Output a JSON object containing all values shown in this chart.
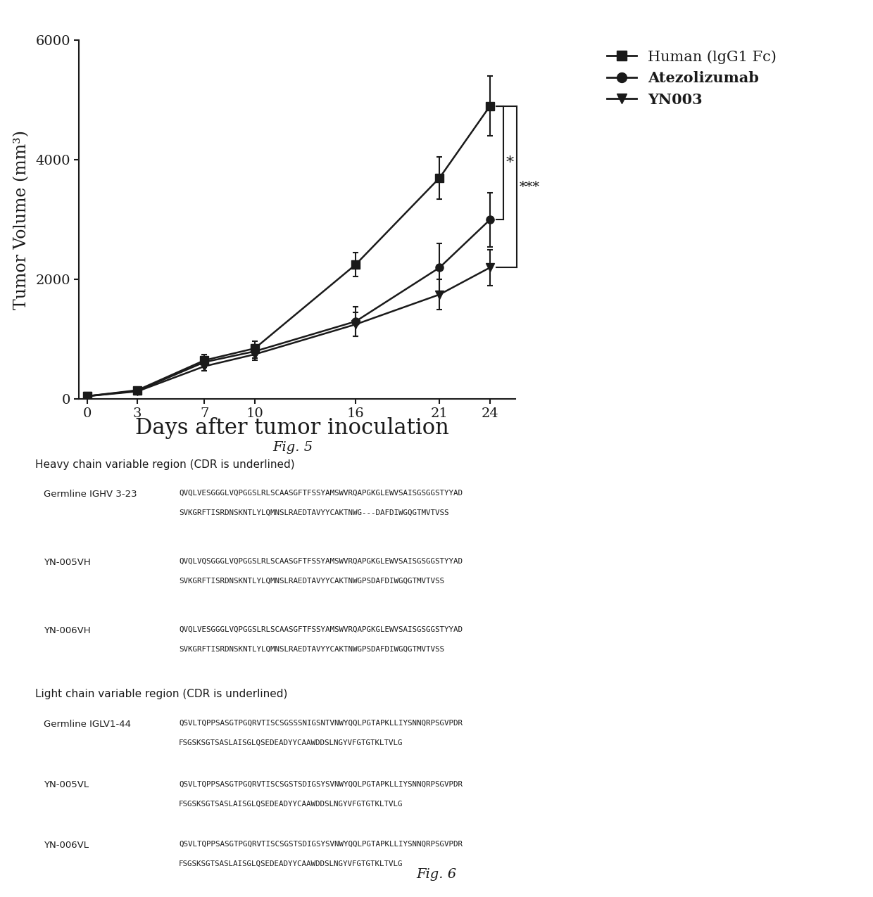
{
  "days": [
    0,
    3,
    7,
    10,
    16,
    21,
    24
  ],
  "human_mean": [
    50,
    150,
    650,
    850,
    2250,
    3700,
    4900
  ],
  "human_err": [
    20,
    60,
    100,
    120,
    200,
    350,
    500
  ],
  "atezolizumab_mean": [
    50,
    140,
    620,
    800,
    1300,
    2200,
    3000
  ],
  "atezolizumab_err": [
    20,
    55,
    90,
    110,
    250,
    400,
    450
  ],
  "yn003_mean": [
    50,
    130,
    550,
    750,
    1250,
    1750,
    2200
  ],
  "yn003_err": [
    20,
    50,
    80,
    100,
    200,
    250,
    300
  ],
  "ylabel": "Tumor Volume (mm³)",
  "xlabel": "Days after tumor inoculation",
  "ylim": [
    0,
    6000
  ],
  "yticks": [
    0,
    2000,
    4000,
    6000
  ],
  "xticks": [
    0,
    3,
    7,
    10,
    16,
    21,
    24
  ],
  "legend_labels": [
    "Human (lgG1 Fc)",
    "Atezolizumab",
    "YN003"
  ],
  "fig5_label": "Fig. 5",
  "annotation_star1": "*",
  "annotation_star2": "***",
  "color": "#1a1a1a",
  "background": "#ffffff",
  "heavy_chain_header": "Heavy chain variable region (CDR is underlined)",
  "light_chain_header": "Light chain variable region (CDR is underlined)",
  "fig6_label": "Fig. 6",
  "heavy_entries": [
    {
      "label": "Germline IGHV 3-23",
      "line1": "QVQLVESGGGLVQPGGSLRLSCAASGFTFSSYAMSWVRQAPGKGLEWVSAISGSGGSTYYAD",
      "line2": "SVKGRFTISRDNSKNTLYLQMNSLRAEDTAVYYCAKTNWG---DAFDIWGQGTMVTVSS"
    },
    {
      "label": "YN-005VH",
      "line1": "QVQLVQSGGGLVQPGGSLRLSCAASGFTFSSYAMSWVRQAPGKGLEWVSAISGSGGSTYYAD",
      "line2": "SVKGRFTISRDNSKNTLYLQMNSLRAEDTAVYYCAKTNWGPSDAFDIWGQGTMVTVSS"
    },
    {
      "label": "YN-006VH",
      "line1": "QVQLVESGGGLVQPGGSLRLSCAASGFTFSSYAMSWVRQAPGKGLEWVSAISGSGGSTYYAD",
      "line2": "SVKGRFTISRDNSKNTLYLQMNSLRAEDTAVYYCAKTNWGPSDAFDIWGQGTMVTVSS"
    }
  ],
  "light_entries": [
    {
      "label": "Germline IGLV1-44",
      "line1": "QSVLTQPPSASGTPGQRVTISCSGSSSNIGSNTVNWYQQLPGTAPKLLIYSNNQRPSGVPDR",
      "line2": "FSGSKSGTSASLAISGLQSEDEADYYCAAWDDSLNGYVFGTGTKLTVLG"
    },
    {
      "label": "YN-005VL",
      "line1": "QSVLTQPPSASGTPGQRVTISCSGSTSDIGSYSVNWYQQLPGTAPKLLIYSNNQRPSGVPDR",
      "line2": "FSGSKSGTSASLAISGLQSEDEADYYCAAWDDSLNGYVFGTGTKLTVLG"
    },
    {
      "label": "YN-006VL",
      "line1": "QSVLTQPPSASGTPGQRVTISCSGSTSDIGSYSVNWYQQLPGTAPKLLIYSNNQRPSGVPDR",
      "line2": "FSGSKSGTSASLAISGLQSEDEADYYCAAWDDSLNGYVFGTGTKLTVLG"
    }
  ]
}
